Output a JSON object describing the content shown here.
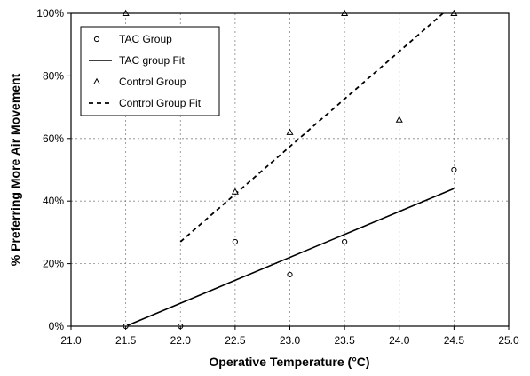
{
  "chart_data": {
    "type": "scatter",
    "title": "",
    "xlabel": "Operative Temperature (°C)",
    "ylabel": "% Preferring More Air Movement",
    "xlim": [
      21.0,
      25.0
    ],
    "ylim": [
      0,
      100
    ],
    "x_ticks": [
      21.0,
      21.5,
      22.0,
      22.5,
      23.0,
      23.5,
      24.0,
      24.5,
      25.0
    ],
    "x_tick_labels": [
      "21.0",
      "21.5",
      "22.0",
      "22.5",
      "23.0",
      "23.5",
      "24.0",
      "24.5",
      "25.0"
    ],
    "y_ticks": [
      0,
      20,
      40,
      60,
      80,
      100
    ],
    "y_tick_labels": [
      "0%",
      "20%",
      "40%",
      "60%",
      "80%",
      "100%"
    ],
    "grid": true,
    "legend_position": "top-left",
    "series": [
      {
        "name": "TAC Group",
        "kind": "points",
        "marker": "circle",
        "points": [
          [
            21.5,
            0
          ],
          [
            22.0,
            0
          ],
          [
            22.5,
            27
          ],
          [
            23.0,
            16.5
          ],
          [
            23.5,
            27
          ],
          [
            24.5,
            50
          ]
        ]
      },
      {
        "name": "TAC group Fit",
        "kind": "line",
        "style": "solid",
        "points": [
          [
            21.5,
            0
          ],
          [
            24.5,
            44
          ]
        ]
      },
      {
        "name": "Control Group",
        "kind": "points",
        "marker": "triangle",
        "points": [
          [
            21.5,
            100
          ],
          [
            22.5,
            43
          ],
          [
            23.0,
            62
          ],
          [
            23.5,
            100
          ],
          [
            24.0,
            66
          ],
          [
            24.5,
            100
          ]
        ]
      },
      {
        "name": "Control Group Fit",
        "kind": "line",
        "style": "dashed",
        "points": [
          [
            22.0,
            27
          ],
          [
            24.4,
            100
          ]
        ]
      }
    ]
  }
}
